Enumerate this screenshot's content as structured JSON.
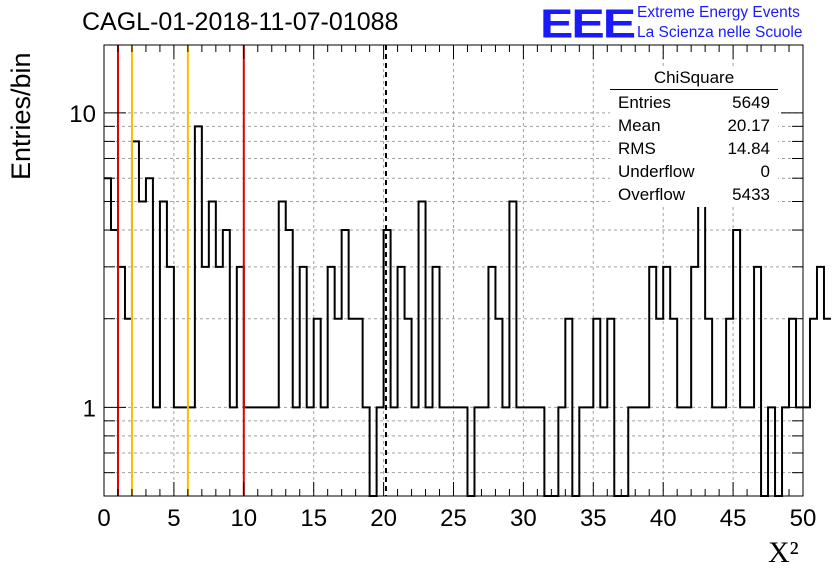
{
  "header": {
    "title": "CAGL-01-2018-11-07-01088",
    "logo_text": "EEE",
    "logo_line1": "Extreme Energy Events",
    "logo_line2": "La Scienza nelle Scuole"
  },
  "stats": {
    "title": "ChiSquare",
    "rows": [
      {
        "key": "Entries",
        "value": "5649"
      },
      {
        "key": "Mean",
        "value": "20.17"
      },
      {
        "key": "RMS",
        "value": "14.84"
      },
      {
        "key": "Underflow",
        "value": "0"
      },
      {
        "key": "Overflow",
        "value": "5433"
      }
    ]
  },
  "colors": {
    "histogram": "#000000",
    "red_line": "#dd0000",
    "yellow_line": "#f5c000",
    "mean_line": "#000000",
    "logo": "#1a1aff"
  },
  "chart_data": {
    "type": "histogram",
    "xlabel": "X²",
    "ylabel": "Entries/bin",
    "xlim": [
      0,
      50
    ],
    "ylim": [
      0.5,
      17
    ],
    "log_y": true,
    "grid": true,
    "bin_width": 0.5,
    "x_ticks": [
      "0",
      "5",
      "10",
      "15",
      "20",
      "25",
      "30",
      "35",
      "40",
      "45",
      "50"
    ],
    "y_ticks": [
      "1",
      "10"
    ],
    "values": [
      6,
      4,
      3,
      2,
      8,
      5,
      6,
      1,
      5,
      3,
      1,
      1,
      1,
      9,
      3,
      5,
      3,
      4,
      1,
      3,
      1,
      1,
      1,
      1,
      1,
      5,
      4,
      1,
      3,
      1,
      2,
      1,
      3,
      2,
      4,
      2,
      2,
      1,
      0,
      1,
      4,
      1,
      3,
      2,
      1,
      5,
      1,
      3,
      1,
      1,
      1,
      1,
      0,
      1,
      1,
      3,
      2,
      1,
      5,
      1,
      1,
      1,
      1,
      0,
      0,
      1,
      2,
      0,
      1,
      1,
      2,
      1,
      2,
      0,
      0,
      1,
      1,
      1,
      3,
      2,
      3,
      2,
      1,
      1,
      3,
      5,
      2,
      1,
      1,
      2,
      4,
      1,
      1,
      3,
      0,
      1,
      0,
      1,
      2,
      1,
      1,
      2,
      3,
      2
    ],
    "vlines": [
      {
        "x": 1,
        "color": "#dd0000",
        "style": "solid"
      },
      {
        "x": 2,
        "color": "#f5c000",
        "style": "solid"
      },
      {
        "x": 6,
        "color": "#f5c000",
        "style": "solid"
      },
      {
        "x": 10,
        "color": "#dd0000",
        "style": "solid"
      },
      {
        "x": 20.17,
        "color": "#000000",
        "style": "dashed"
      }
    ]
  }
}
